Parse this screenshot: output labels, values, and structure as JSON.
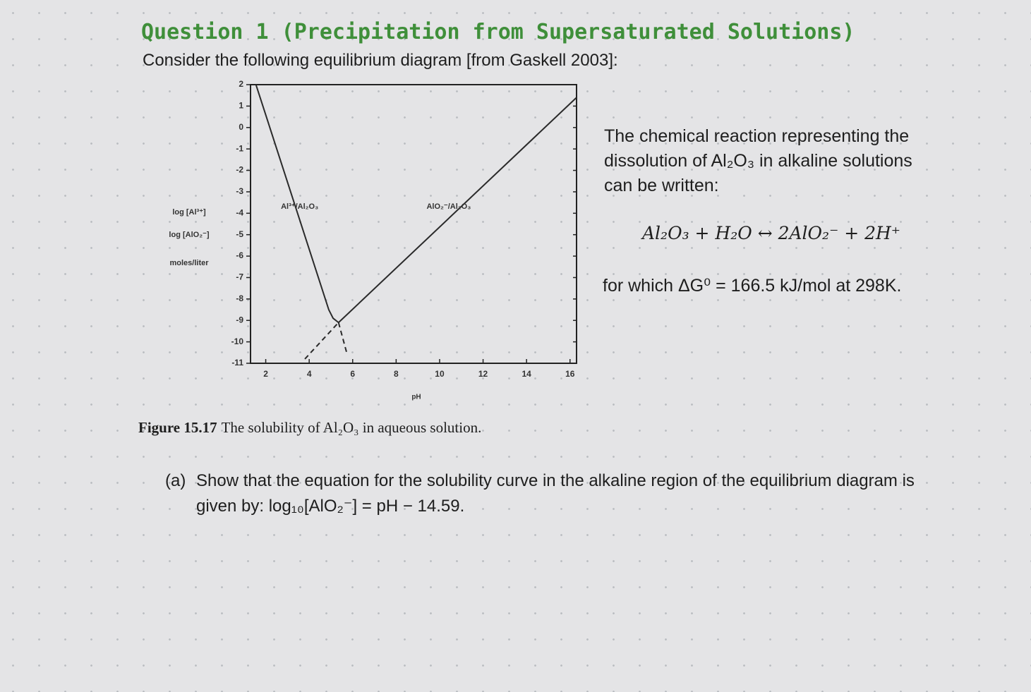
{
  "header": {
    "title": "Question 1 (Precipitation from Supersaturated Solutions)",
    "intro": "Consider the following equilibrium diagram [from Gaskell 2003]:"
  },
  "figure": {
    "chart_data": {
      "type": "line",
      "y_labels": [
        "log [Al³⁺]",
        "log [AlO₂⁻]",
        "moles/liter"
      ],
      "x_label": "pH",
      "xlim": [
        1.3,
        16.3
      ],
      "ylim": [
        -11,
        2
      ],
      "xticks": [
        2,
        4,
        6,
        8,
        10,
        12,
        14,
        16
      ],
      "yticks": [
        2,
        1,
        0,
        -1,
        -2,
        -3,
        -4,
        -5,
        -6,
        -7,
        -8,
        -9,
        -10,
        -11
      ],
      "color": "#2a2a2a",
      "series": [
        {
          "name": "Al³⁺/Al₂O₃",
          "x": [
            1.55,
            4.9,
            5.1,
            5.35
          ],
          "values": [
            2,
            -8.5,
            -8.9,
            -9.1
          ]
        },
        {
          "name": "AlO₂⁻/Al₂O₃",
          "x": [
            5.35,
            16.3
          ],
          "values": [
            -9.1,
            1.4
          ]
        },
        {
          "style": "dashed",
          "x": [
            5.35,
            5.75
          ],
          "values": [
            -9.1,
            -10.6
          ]
        },
        {
          "style": "dashed",
          "x": [
            3.8,
            5.35
          ],
          "values": [
            -10.8,
            -9.1
          ]
        }
      ]
    },
    "caption_label": "Figure 15.17",
    "caption_text": "The solubility of Al₂O₃ in aqueous solution."
  },
  "side": {
    "text": "The chemical reaction representing the dissolution of Al₂O₃ in alkaline solutions can be written:",
    "equation": "Al₂O₃ + H₂O ↔ 2AlO₂⁻ + 2H⁺",
    "condition": "for which ΔG⁰ = 166.5 kJ/mol at 298K."
  },
  "question": {
    "label": "(a)",
    "text": "Show that the equation for the solubility curve in the alkaline region of the equilibrium diagram is given by: log₁₀[AlO₂⁻] = pH − 14.59."
  }
}
